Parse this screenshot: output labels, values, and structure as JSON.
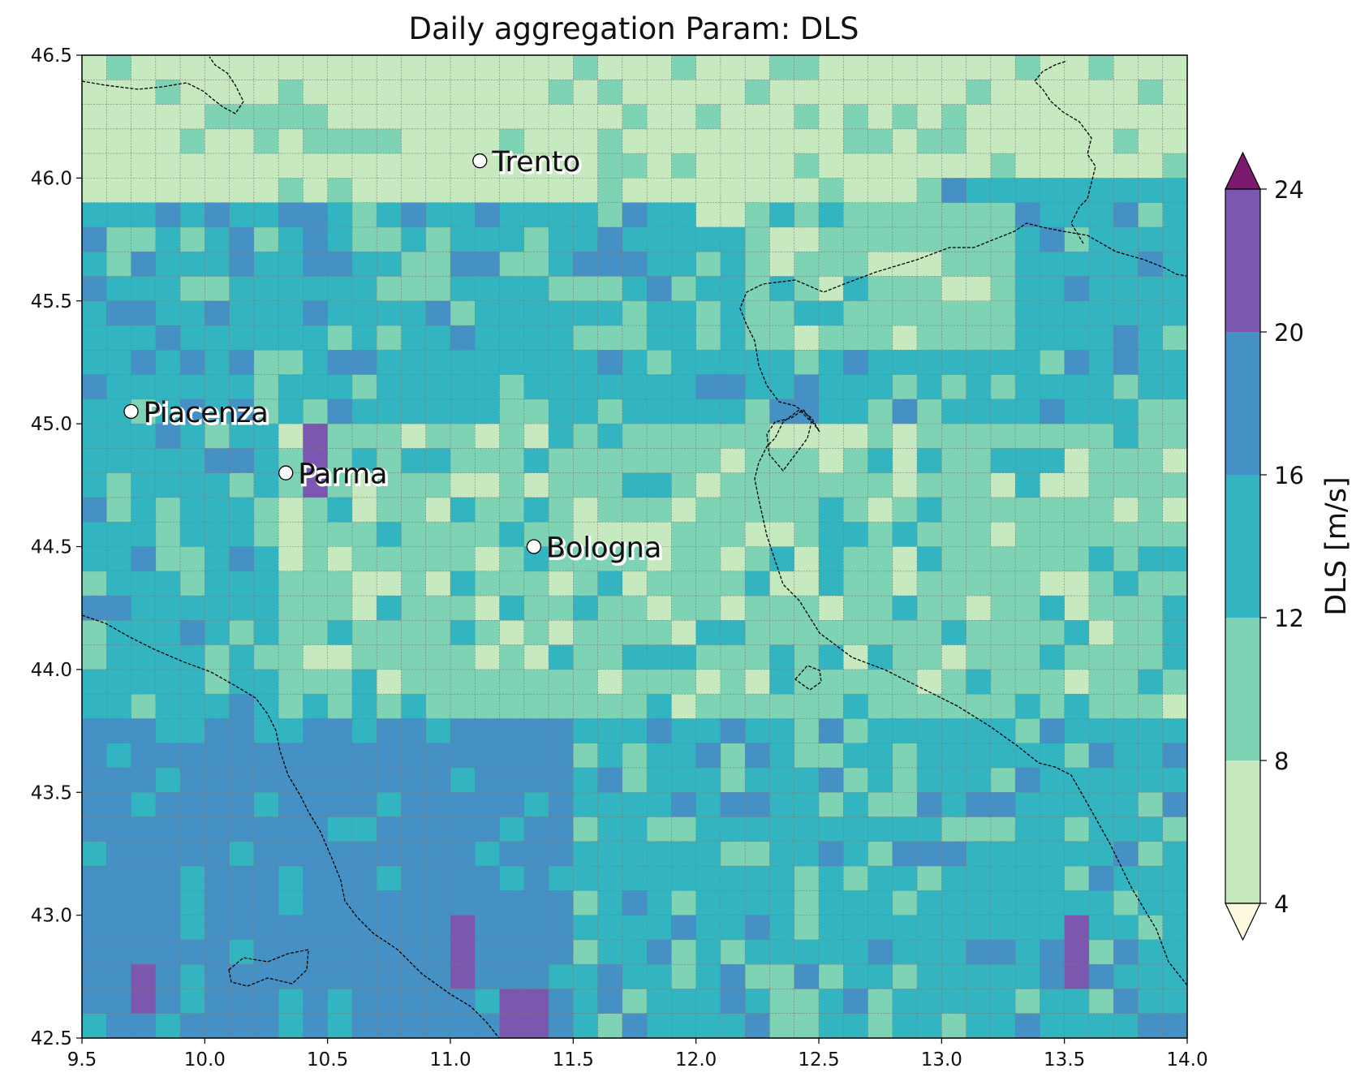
{
  "title": "Daily aggregation Param: DLS",
  "map": {
    "lon_range": [
      9.5,
      14.0
    ],
    "lat_range": [
      42.5,
      46.5
    ],
    "cell_size_deg": 0.1,
    "x_ticks": [
      "9.5",
      "10.0",
      "10.5",
      "11.0",
      "11.5",
      "12.0",
      "12.5",
      "13.0",
      "13.5",
      "14.0"
    ],
    "y_ticks": [
      "46.5",
      "46.0",
      "45.5",
      "45.0",
      "44.5",
      "44.0",
      "43.5",
      "43.0",
      "42.5"
    ],
    "grid": true,
    "coastline_style": "dashed-black"
  },
  "colorbar": {
    "label": "DLS  [m/s]",
    "ticks": [
      "24",
      "20",
      "16",
      "12",
      "8",
      "4"
    ],
    "bins": [
      {
        "from": 4,
        "to": 8,
        "color": "#c7e9c0"
      },
      {
        "from": 8,
        "to": 12,
        "color": "#7dd3b4"
      },
      {
        "from": 12,
        "to": 16,
        "color": "#33b5c1"
      },
      {
        "from": 16,
        "to": 20,
        "color": "#4590c5"
      },
      {
        "from": 20,
        "to": 24,
        "color": "#7c57b0"
      }
    ],
    "under_color": "#fdf8e0",
    "over_color": "#7b1a6e",
    "extend": "both"
  },
  "cities": [
    {
      "name": "Trento",
      "lon": 11.12,
      "lat": 46.07
    },
    {
      "name": "Piacenza",
      "lon": 9.7,
      "lat": 45.05
    },
    {
      "name": "Parma",
      "lon": 10.33,
      "lat": 44.8
    },
    {
      "name": "Bologna",
      "lon": 11.34,
      "lat": 44.5
    }
  ],
  "chart_data": {
    "type": "heatmap",
    "title": "Daily aggregation Param: DLS",
    "xlabel": "",
    "ylabel": "",
    "xlim": [
      9.5,
      14.0
    ],
    "ylim": [
      42.5,
      46.5
    ],
    "colorbar_label": "DLS  [m/s]",
    "value_bins": [
      [
        4,
        8
      ],
      [
        8,
        12
      ],
      [
        12,
        16
      ],
      [
        16,
        20
      ],
      [
        20,
        24
      ]
    ],
    "regions": [
      {
        "description": "Alpine north (lat 45.9-46.5)",
        "dominant_bin": [
          4,
          8
        ]
      },
      {
        "description": "Po valley band (lat 45.0-45.9)",
        "dominant_bin": [
          12,
          16
        ]
      },
      {
        "description": "Apennines/central (lat 43.8-44.8)",
        "dominant_bin": [
          8,
          12
        ]
      },
      {
        "description": "Tyrrhenian south-west (lat 42.5-43.8, lon 9.5-11.5)",
        "dominant_bin": [
          16,
          20
        ]
      },
      {
        "description": "Adriatic south-east (lat 42.5-44.5, lon 12.5-14.0)",
        "dominant_bin": [
          12,
          16
        ]
      }
    ],
    "local_maxima": [
      {
        "lon": 10.45,
        "lat": 44.85,
        "bin": [
          20,
          24
        ]
      },
      {
        "lon": 9.75,
        "lat": 42.7,
        "bin": [
          20,
          24
        ]
      },
      {
        "lon": 11.05,
        "lat": 42.85,
        "bin": [
          20,
          24
        ]
      },
      {
        "lon": 11.3,
        "lat": 42.55,
        "bin": [
          20,
          24
        ]
      },
      {
        "lon": 13.55,
        "lat": 42.85,
        "bin": [
          20,
          24
        ]
      }
    ]
  }
}
